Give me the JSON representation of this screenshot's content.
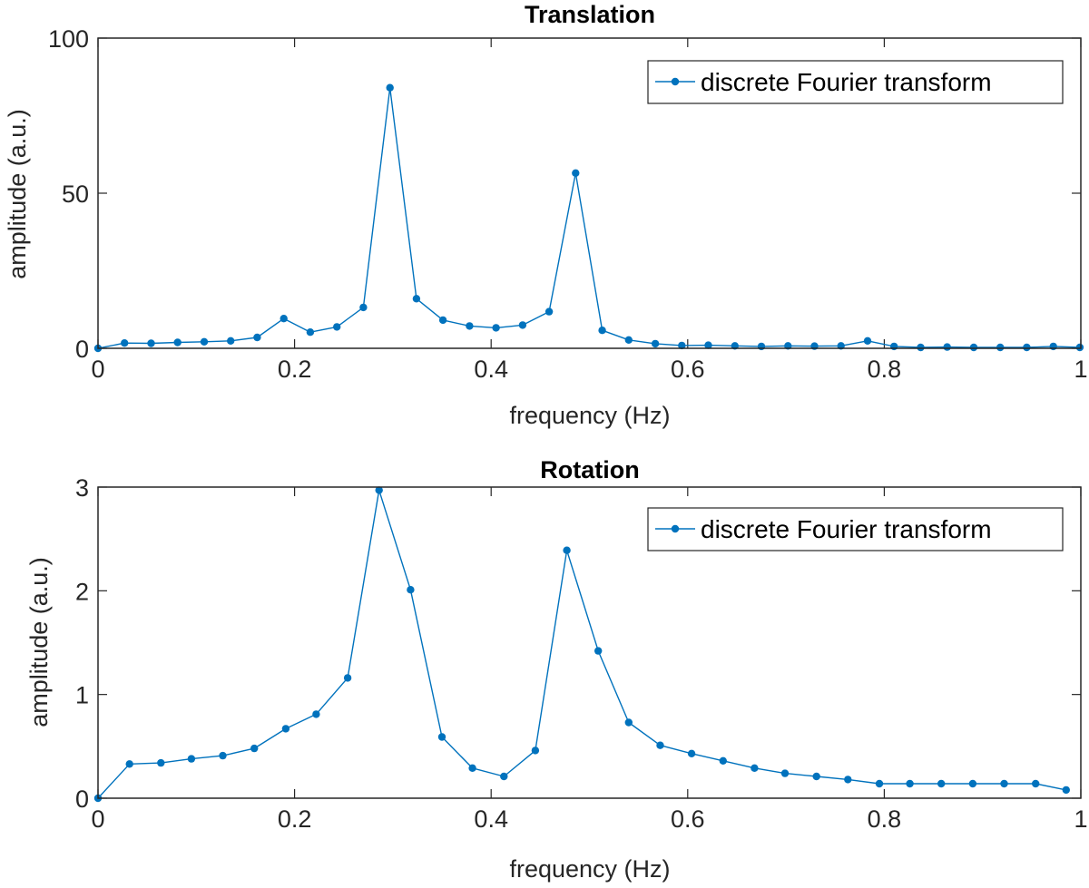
{
  "chart_data": [
    {
      "type": "line",
      "title": "Translation",
      "xlabel": "frequency (Hz)",
      "ylabel": "amplitude (a.u.)",
      "xlim": [
        0,
        1
      ],
      "ylim": [
        0,
        100
      ],
      "xticks": [
        "0",
        "0.2",
        "0.4",
        "0.6",
        "0.8",
        "1"
      ],
      "xtick_values": [
        0,
        0.2,
        0.4,
        0.6,
        0.8,
        1
      ],
      "yticks": [
        "0",
        "50",
        "100"
      ],
      "ytick_values": [
        0,
        50,
        100
      ],
      "grid": false,
      "legend_position": "top-right",
      "series": [
        {
          "name": "discrete Fourier transform",
          "color": "#0072BD",
          "x": [
            0,
            0.027,
            0.054,
            0.081,
            0.108,
            0.135,
            0.162,
            0.189,
            0.216,
            0.243,
            0.27,
            0.297,
            0.324,
            0.351,
            0.378,
            0.405,
            0.432,
            0.459,
            0.486,
            0.513,
            0.54,
            0.567,
            0.594,
            0.621,
            0.648,
            0.675,
            0.702,
            0.729,
            0.756,
            0.783,
            0.81,
            0.837,
            0.864,
            0.891,
            0.918,
            0.945,
            0.972,
            0.999
          ],
          "y": [
            0,
            1.7,
            1.6,
            1.9,
            2.1,
            2.4,
            3.5,
            9.6,
            5.2,
            6.9,
            13.2,
            84,
            16,
            9.1,
            7.2,
            6.6,
            7.5,
            11.8,
            56.5,
            5.8,
            2.7,
            1.5,
            0.9,
            1,
            0.8,
            0.6,
            0.8,
            0.7,
            0.8,
            2.4,
            0.6,
            0.3,
            0.4,
            0.3,
            0.3,
            0.3,
            0.6,
            0.3
          ]
        }
      ]
    },
    {
      "type": "line",
      "title": "Rotation",
      "xlabel": "frequency (Hz)",
      "ylabel": "amplitude (a.u.)",
      "xlim": [
        0,
        1
      ],
      "ylim": [
        0,
        3
      ],
      "xticks": [
        "0",
        "0.2",
        "0.4",
        "0.6",
        "0.8",
        "1"
      ],
      "xtick_values": [
        0,
        0.2,
        0.4,
        0.6,
        0.8,
        1
      ],
      "yticks": [
        "0",
        "1",
        "2",
        "3"
      ],
      "ytick_values": [
        0,
        1,
        2,
        3
      ],
      "grid": false,
      "legend_position": "top-right",
      "series": [
        {
          "name": "discrete Fourier transform",
          "color": "#0072BD",
          "x": [
            0,
            0.032,
            0.064,
            0.095,
            0.127,
            0.159,
            0.191,
            0.222,
            0.254,
            0.286,
            0.318,
            0.35,
            0.381,
            0.413,
            0.445,
            0.477,
            0.509,
            0.54,
            0.572,
            0.604,
            0.636,
            0.668,
            0.699,
            0.731,
            0.763,
            0.795,
            0.826,
            0.858,
            0.89,
            0.922,
            0.954,
            0.985
          ],
          "y": [
            0,
            0.33,
            0.34,
            0.38,
            0.41,
            0.48,
            0.67,
            0.81,
            1.16,
            2.97,
            2.01,
            0.59,
            0.29,
            0.21,
            0.46,
            2.39,
            1.42,
            0.73,
            0.51,
            0.43,
            0.36,
            0.29,
            0.24,
            0.21,
            0.18,
            0.14,
            0.14,
            0.14,
            0.14,
            0.14,
            0.14,
            0.08
          ]
        }
      ]
    }
  ]
}
